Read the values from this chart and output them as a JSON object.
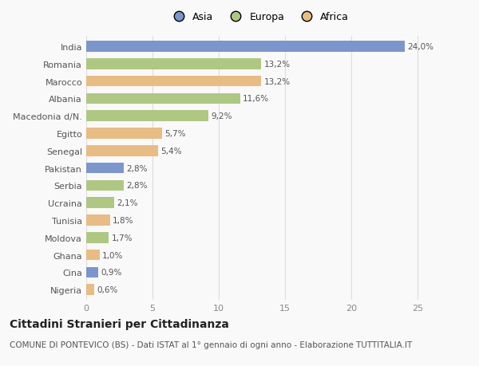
{
  "categories": [
    "India",
    "Romania",
    "Marocco",
    "Albania",
    "Macedonia d/N.",
    "Egitto",
    "Senegal",
    "Pakistan",
    "Serbia",
    "Ucraina",
    "Tunisia",
    "Moldova",
    "Ghana",
    "Cina",
    "Nigeria"
  ],
  "values": [
    24.0,
    13.2,
    13.2,
    11.6,
    9.2,
    5.7,
    5.4,
    2.8,
    2.8,
    2.1,
    1.8,
    1.7,
    1.0,
    0.9,
    0.6
  ],
  "labels": [
    "24,0%",
    "13,2%",
    "13,2%",
    "11,6%",
    "9,2%",
    "5,7%",
    "5,4%",
    "2,8%",
    "2,8%",
    "2,1%",
    "1,8%",
    "1,7%",
    "1,0%",
    "0,9%",
    "0,6%"
  ],
  "continents": [
    "Asia",
    "Europa",
    "Africa",
    "Europa",
    "Europa",
    "Africa",
    "Africa",
    "Asia",
    "Europa",
    "Europa",
    "Africa",
    "Europa",
    "Africa",
    "Asia",
    "Africa"
  ],
  "colors": {
    "Asia": "#7b96cc",
    "Europa": "#aec882",
    "Africa": "#e8bc82"
  },
  "legend_labels": [
    "Asia",
    "Europa",
    "Africa"
  ],
  "title": "Cittadini Stranieri per Cittadinanza",
  "subtitle": "COMUNE DI PONTEVICO (BS) - Dati ISTAT al 1° gennaio di ogni anno - Elaborazione TUTTITALIA.IT",
  "xlim": [
    0,
    26
  ],
  "xticks": [
    0,
    5,
    10,
    15,
    20,
    25
  ],
  "background_color": "#f9f9f9",
  "grid_color": "#dddddd",
  "bar_height": 0.62,
  "title_fontsize": 10,
  "subtitle_fontsize": 7.5,
  "label_fontsize": 7.5,
  "tick_fontsize": 8,
  "legend_fontsize": 9
}
